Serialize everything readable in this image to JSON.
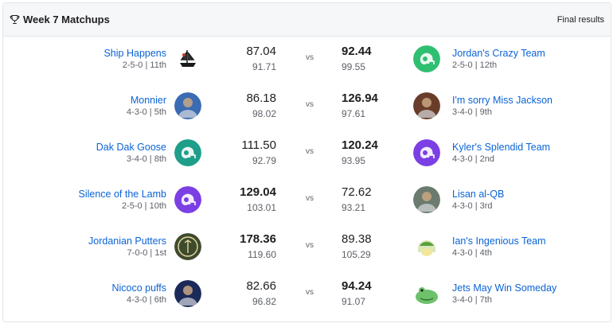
{
  "header": {
    "title": "Week 7 Matchups",
    "status": "Final results"
  },
  "matchups": [
    {
      "left": {
        "name": "Ship Happens",
        "record": "2-5-0 | 11th",
        "score": "87.04",
        "projected": "91.71",
        "winner": false,
        "avatar_icon": "pirate-ship-avatar-icon",
        "avatar_color": "#1b1b1b"
      },
      "vs": "vs",
      "right": {
        "name": "Jordan's Crazy Team",
        "record": "2-5-0 | 12th",
        "score": "92.44",
        "projected": "99.55",
        "winner": true,
        "avatar_icon": "football-helmet-avatar-icon",
        "avatar_color": "#2fbf71"
      }
    },
    {
      "left": {
        "name": "Monnier",
        "record": "4-3-0 | 5th",
        "score": "86.18",
        "projected": "98.02",
        "winner": false,
        "avatar_icon": "player-photo-avatar-icon",
        "avatar_color": "#3b6bb3"
      },
      "vs": "vs",
      "right": {
        "name": "I'm sorry Miss Jackson",
        "record": "3-4-0 | 9th",
        "score": "126.94",
        "projected": "97.61",
        "winner": true,
        "avatar_icon": "group-photo-avatar-icon",
        "avatar_color": "#6a3d2a"
      }
    },
    {
      "left": {
        "name": "Dak Dak Goose",
        "record": "3-4-0 | 8th",
        "score": "111.50",
        "projected": "92.79",
        "winner": false,
        "avatar_icon": "football-helmet-avatar-icon",
        "avatar_color": "#1f9e8a"
      },
      "vs": "vs",
      "right": {
        "name": "Kyler's Splendid Team",
        "record": "4-3-0 | 2nd",
        "score": "120.24",
        "projected": "93.95",
        "winner": true,
        "avatar_icon": "football-helmet-avatar-icon",
        "avatar_color": "#7b3fe4"
      }
    },
    {
      "left": {
        "name": "Silence of the Lamb",
        "record": "2-5-0 | 10th",
        "score": "129.04",
        "projected": "103.01",
        "winner": true,
        "avatar_icon": "football-helmet-avatar-icon",
        "avatar_color": "#7b3fe4"
      },
      "vs": "vs",
      "right": {
        "name": "Lisan al-QB",
        "record": "4-3-0 | 3rd",
        "score": "72.62",
        "projected": "93.21",
        "winner": false,
        "avatar_icon": "character-photo-avatar-icon",
        "avatar_color": "#6b7b6e"
      }
    },
    {
      "left": {
        "name": "Jordanian Putters",
        "record": "7-0-0 | 1st",
        "score": "178.36",
        "projected": "119.60",
        "winner": true,
        "avatar_icon": "badge-logo-avatar-icon",
        "avatar_color": "#3e4a2c"
      },
      "vs": "vs",
      "right": {
        "name": "Ian's Ingenious Team",
        "record": "4-3-0 | 4th",
        "score": "89.38",
        "projected": "105.29",
        "winner": false,
        "avatar_icon": "cartoon-face-avatar-icon",
        "avatar_color": "#d9e8b8"
      }
    },
    {
      "left": {
        "name": "Nicoco puffs",
        "record": "4-3-0 | 6th",
        "score": "82.66",
        "projected": "96.82",
        "winner": false,
        "avatar_icon": "player-photo-avatar-icon",
        "avatar_color": "#1c2a5a"
      },
      "vs": "vs",
      "right": {
        "name": "Jets May Win Someday",
        "record": "3-4-0 | 7th",
        "score": "94.24",
        "projected": "91.07",
        "winner": true,
        "avatar_icon": "frog-cartoon-avatar-icon",
        "avatar_color": "#6cc16a"
      }
    }
  ]
}
